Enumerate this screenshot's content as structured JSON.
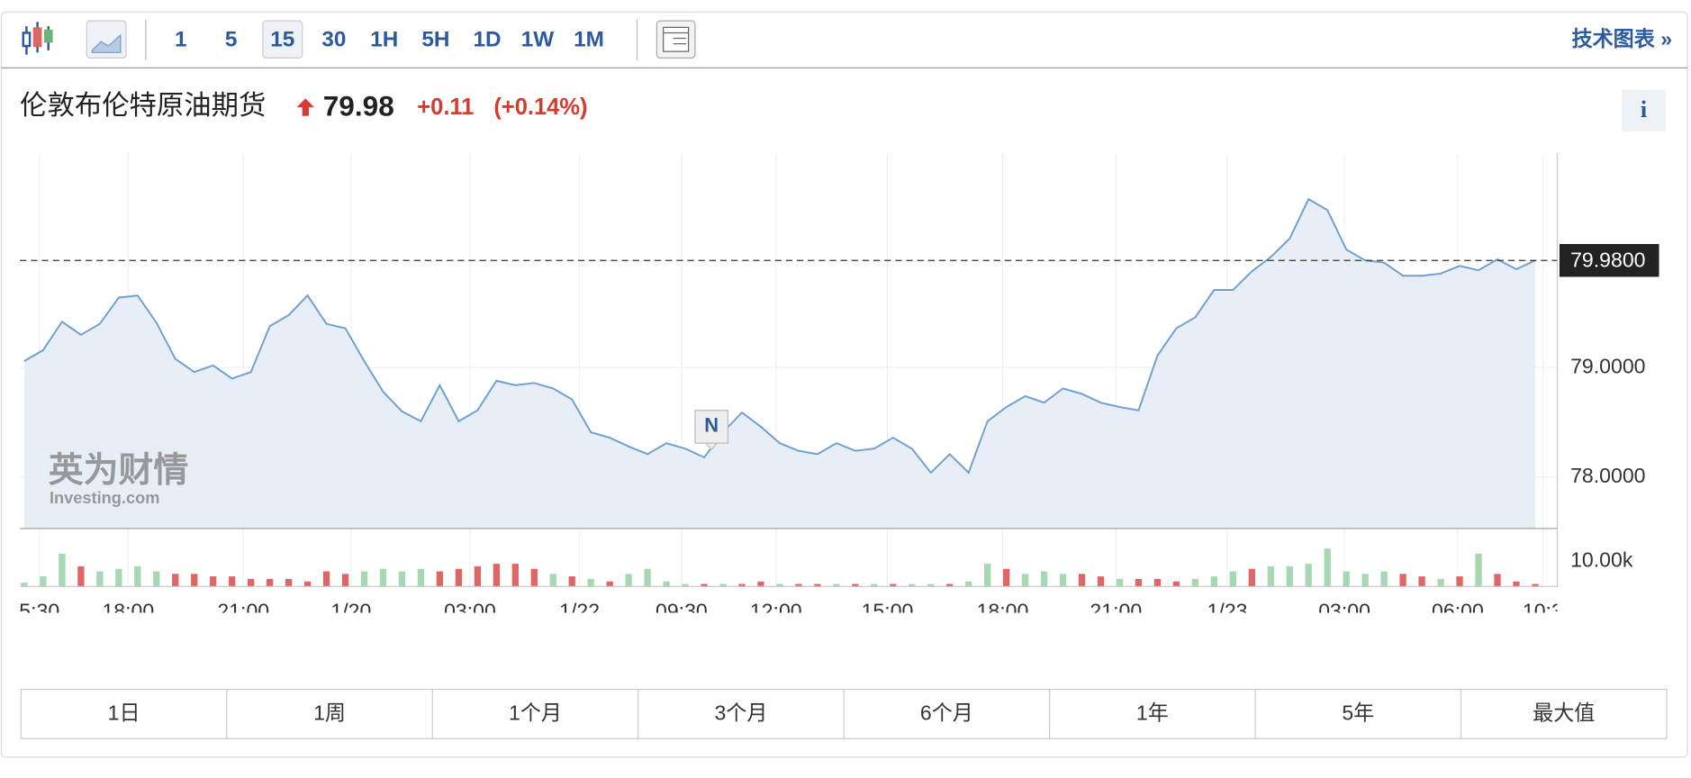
{
  "toolbar": {
    "intervals": [
      "1",
      "5",
      "15",
      "30",
      "1H",
      "5H",
      "1D",
      "1W",
      "1M"
    ],
    "active": 2,
    "link": "技术图表 »"
  },
  "header": {
    "name": "伦敦布伦特原油期货",
    "price": "79.98",
    "change": "+0.11",
    "change_pct": "(+0.14%)",
    "info": "i"
  },
  "watermark": {
    "brand": "英为财情",
    "site": "Investing.com"
  },
  "marker": "N",
  "ranges": [
    "1日",
    "1周",
    "1个月",
    "3个月",
    "6个月",
    "1年",
    "5年",
    "最大值"
  ],
  "chart_data": [
    {
      "type": "area",
      "color": "#6f9fd0",
      "fill": "#e8eef6",
      "grid": true,
      "x": [
        0,
        1,
        2,
        3,
        4,
        5,
        6,
        7,
        8,
        9,
        10,
        11,
        12,
        13,
        14,
        15,
        16,
        17,
        18,
        19,
        20,
        21,
        22,
        23,
        24,
        25,
        26,
        27,
        28,
        29,
        30,
        31,
        32,
        33,
        34,
        35,
        36,
        37,
        38,
        39,
        40,
        41,
        42,
        43,
        44,
        45,
        46,
        47,
        48,
        49,
        50,
        51,
        52,
        53,
        54,
        55,
        56,
        57,
        58,
        59,
        60,
        61,
        62,
        63,
        64,
        65,
        66,
        67,
        68,
        69,
        70,
        71,
        72,
        73,
        74,
        75,
        76,
        77,
        78,
        79,
        80
      ],
      "values": [
        79.06,
        79.16,
        79.42,
        79.3,
        79.4,
        79.64,
        79.66,
        79.41,
        79.08,
        78.96,
        79.02,
        78.9,
        78.96,
        79.38,
        79.48,
        79.66,
        79.4,
        79.36,
        79.06,
        78.78,
        78.6,
        78.51,
        78.84,
        78.51,
        78.61,
        78.88,
        78.84,
        78.86,
        78.81,
        78.71,
        78.41,
        78.36,
        78.28,
        78.21,
        78.31,
        78.26,
        78.18,
        78.41,
        78.59,
        78.46,
        78.31,
        78.24,
        78.21,
        78.31,
        78.24,
        78.26,
        78.36,
        78.26,
        78.04,
        78.21,
        78.04,
        78.51,
        78.64,
        78.74,
        78.68,
        78.81,
        78.76,
        78.68,
        78.64,
        78.61,
        79.11,
        79.36,
        79.46,
        79.71,
        79.71,
        79.88,
        80.01,
        80.18,
        80.54,
        80.44,
        80.08,
        79.98,
        79.96,
        79.84,
        79.84,
        79.86,
        79.93,
        79.89,
        79.99,
        79.9,
        79.98
      ],
      "xlim": [
        -0.23,
        81.17
      ],
      "xticks": [
        {
          "value": 0.8,
          "label": "5:30"
        },
        {
          "value": 5.5,
          "label": "18:00"
        },
        {
          "value": 11.6,
          "label": "21:00"
        },
        {
          "value": 17.3,
          "label": "1/20"
        },
        {
          "value": 23.6,
          "label": "03:00"
        },
        {
          "value": 29.4,
          "label": "1/22"
        },
        {
          "value": 34.8,
          "label": "09:30"
        },
        {
          "value": 39.8,
          "label": "12:00"
        },
        {
          "value": 45.7,
          "label": "15:00"
        },
        {
          "value": 51.8,
          "label": "18:00"
        },
        {
          "value": 57.8,
          "label": "21:00"
        },
        {
          "value": 63.7,
          "label": "1/23"
        },
        {
          "value": 69.9,
          "label": "03:00"
        },
        {
          "value": 75.9,
          "label": "06:00"
        },
        {
          "value": 80.4,
          "label": "10:3"
        }
      ],
      "ylim": [
        77.53,
        80.96
      ],
      "yticks": [
        {
          "value": 78,
          "label": "78.0000"
        },
        {
          "value": 79,
          "label": "79.0000"
        }
      ],
      "last": {
        "value": 79.98,
        "label": "79.9800"
      }
    },
    {
      "type": "bar",
      "xlim": [
        -0.23,
        81.17
      ],
      "ylim": [
        0,
        20.8
      ],
      "yticks": [
        {
          "value": 10,
          "label": "10.00k"
        }
      ],
      "values": [
        1.5,
        4,
        13,
        8,
        6,
        7,
        8,
        6,
        5,
        5,
        4,
        4,
        3,
        3,
        3,
        2,
        6,
        5,
        6,
        7,
        6,
        7,
        6,
        7,
        8,
        9,
        9,
        7,
        5,
        4,
        3,
        2,
        5,
        7,
        2,
        1,
        1,
        1,
        1,
        2,
        1,
        1,
        1,
        1,
        1,
        1,
        1,
        1,
        1,
        1,
        2,
        9,
        7,
        5,
        6,
        5,
        5,
        4,
        3,
        3,
        3,
        2,
        3,
        4,
        6,
        7,
        8,
        8,
        9,
        15,
        6,
        5,
        6,
        5,
        4,
        3,
        4,
        13,
        5,
        2,
        1
      ],
      "colors": [
        "#a6d8b3",
        "#a6d8b3",
        "#a6d8b3",
        "#e06666",
        "#a6d8b3",
        "#a6d8b3",
        "#a6d8b3",
        "#a6d8b3",
        "#e06666",
        "#e06666",
        "#e06666",
        "#e06666",
        "#e06666",
        "#e06666",
        "#e06666",
        "#e06666",
        "#e06666",
        "#e06666",
        "#a6d8b3",
        "#a6d8b3",
        "#a6d8b3",
        "#a6d8b3",
        "#e06666",
        "#e06666",
        "#e06666",
        "#e06666",
        "#e06666",
        "#e06666",
        "#a6d8b3",
        "#e06666",
        "#a6d8b3",
        "#e06666",
        "#a6d8b3",
        "#a6d8b3",
        "#a6d8b3",
        "#a6d8b3",
        "#e06666",
        "#a6d8b3",
        "#e06666",
        "#e06666",
        "#a6d8b3",
        "#e06666",
        "#e06666",
        "#a6d8b3",
        "#e06666",
        "#a6d8b3",
        "#e06666",
        "#a6d8b3",
        "#a6d8b3",
        "#e06666",
        "#a6d8b3",
        "#a6d8b3",
        "#e06666",
        "#a6d8b3",
        "#a6d8b3",
        "#a6d8b3",
        "#e06666",
        "#e06666",
        "#a6d8b3",
        "#e06666",
        "#e06666",
        "#e06666",
        "#a6d8b3",
        "#a6d8b3",
        "#a6d8b3",
        "#e06666",
        "#a6d8b3",
        "#a6d8b3",
        "#a6d8b3",
        "#a6d8b3",
        "#a6d8b3",
        "#a6d8b3",
        "#a6d8b3",
        "#e06666",
        "#e06666",
        "#a6d8b3",
        "#e06666",
        "#a6d8b3",
        "#e06666",
        "#e06666",
        "#e06666"
      ]
    }
  ]
}
